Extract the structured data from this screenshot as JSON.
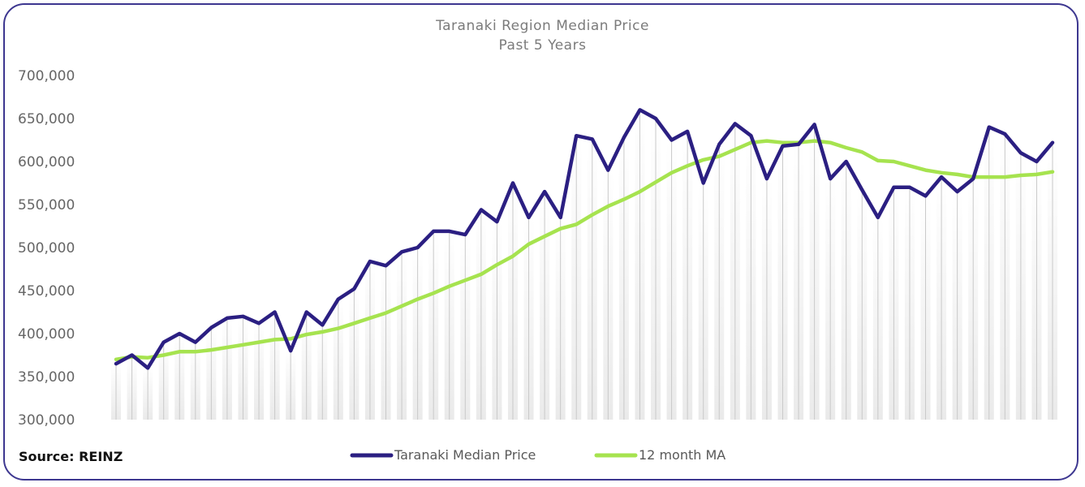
{
  "chart_data": {
    "type": "line",
    "title": "Taranaki Region Median Price",
    "subtitle": "Past 5 Years",
    "xlabel": "",
    "ylabel": "",
    "ylim": [
      300000,
      700000
    ],
    "y_ticks": [
      "300,000",
      "350,000",
      "400,000",
      "450,000",
      "500,000",
      "550,000",
      "600,000",
      "650,000",
      "700,000"
    ],
    "grid": "vertical drop lines per month",
    "legend_position": "bottom-center",
    "source": "Source: REINZ",
    "series": [
      {
        "name": "Taranaki Median Price",
        "color": "#2b1f82",
        "values": [
          365000,
          375000,
          360000,
          390000,
          400000,
          390000,
          407000,
          418000,
          420000,
          412000,
          425000,
          380000,
          425000,
          410000,
          440000,
          452000,
          484000,
          479000,
          495000,
          500000,
          519000,
          519000,
          515000,
          544000,
          530000,
          575000,
          535000,
          565000,
          535000,
          630000,
          626000,
          590000,
          628000,
          660000,
          650000,
          625000,
          635000,
          575000,
          620000,
          644000,
          630000,
          580000,
          618000,
          620000,
          643000,
          580000,
          600000,
          567000,
          535000,
          570000,
          570000,
          560000,
          582000,
          565000,
          580000,
          640000,
          632000,
          610000,
          600000,
          622000
        ]
      },
      {
        "name": "12 month MA",
        "color": "#a6e34f",
        "values": [
          370000,
          373000,
          372000,
          375000,
          379000,
          379000,
          381000,
          384000,
          387000,
          390000,
          393000,
          394000,
          399000,
          402000,
          406000,
          412000,
          418000,
          424000,
          432000,
          440000,
          447000,
          455000,
          462000,
          469000,
          480000,
          490000,
          504000,
          513000,
          522000,
          527000,
          538000,
          548000,
          556000,
          565000,
          576000,
          587000,
          595000,
          602000,
          606000,
          614000,
          622000,
          624000,
          622000,
          622000,
          624000,
          622000,
          616000,
          611000,
          601000,
          600000,
          595000,
          590000,
          587000,
          585000,
          582000,
          582000,
          582000,
          584000,
          585000,
          588000
        ]
      }
    ]
  }
}
